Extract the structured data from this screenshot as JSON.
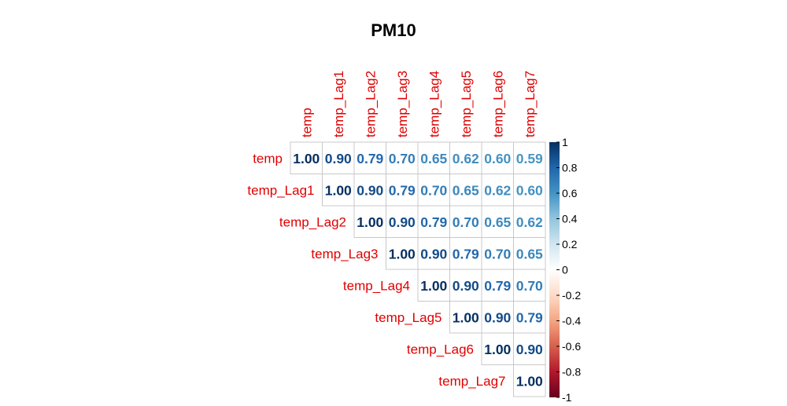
{
  "chart_data": {
    "type": "heatmap",
    "title": "PM10",
    "variables": [
      "temp",
      "temp_Lag1",
      "temp_Lag2",
      "temp_Lag3",
      "temp_Lag4",
      "temp_Lag5",
      "temp_Lag6",
      "temp_Lag7"
    ],
    "layout": "upper-triangle",
    "matrix": [
      [
        1.0,
        0.9,
        0.79,
        0.7,
        0.65,
        0.62,
        0.6,
        0.59
      ],
      [
        null,
        1.0,
        0.9,
        0.79,
        0.7,
        0.65,
        0.62,
        0.6
      ],
      [
        null,
        null,
        1.0,
        0.9,
        0.79,
        0.7,
        0.65,
        0.62
      ],
      [
        null,
        null,
        null,
        1.0,
        0.9,
        0.79,
        0.7,
        0.65
      ],
      [
        null,
        null,
        null,
        null,
        1.0,
        0.9,
        0.79,
        0.7
      ],
      [
        null,
        null,
        null,
        null,
        null,
        1.0,
        0.9,
        0.79
      ],
      [
        null,
        null,
        null,
        null,
        null,
        null,
        1.0,
        0.9
      ],
      [
        null,
        null,
        null,
        null,
        null,
        null,
        null,
        1.0
      ]
    ],
    "colorbar": {
      "range": [
        -1,
        1
      ],
      "ticks": [
        "1",
        "0.8",
        "0.6",
        "0.4",
        "0.2",
        "0",
        "-0.2",
        "-0.4",
        "-0.6",
        "-0.8",
        "-1"
      ],
      "colors": [
        "#67001f",
        "#b2182b",
        "#d6604d",
        "#f4a582",
        "#fddbc7",
        "#ffffff",
        "#d1e5f0",
        "#92c5de",
        "#4393c3",
        "#2166ac",
        "#053061"
      ]
    },
    "label_color": "#e00000"
  }
}
